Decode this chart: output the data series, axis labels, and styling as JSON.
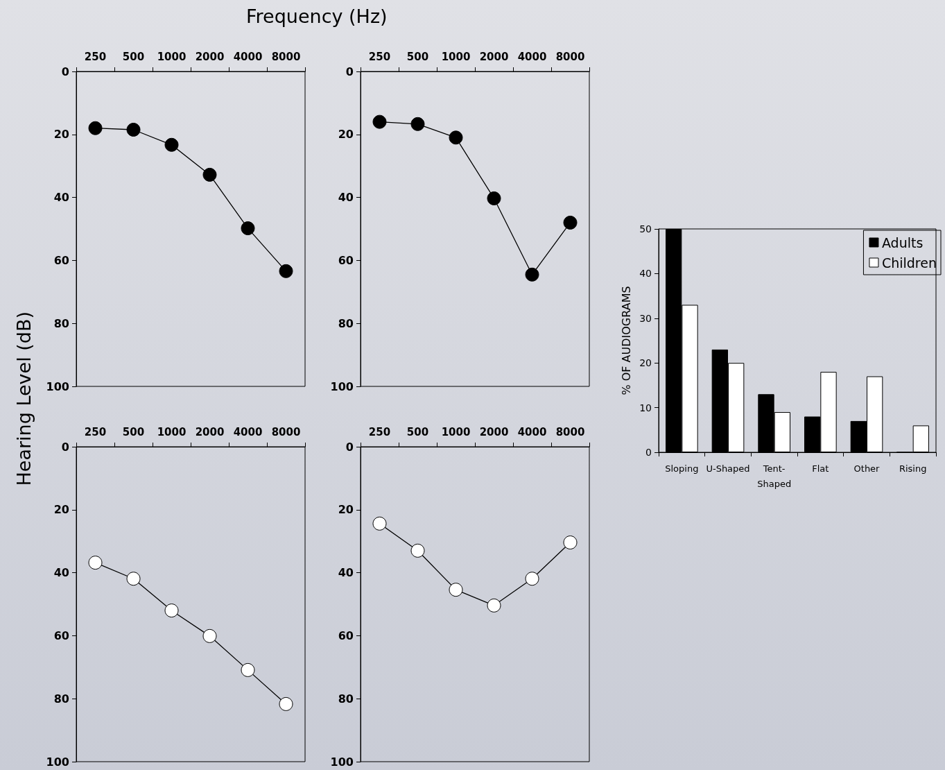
{
  "chart_data": [
    {
      "type": "line",
      "xlabel": "Frequency (Hz)",
      "ylabel": "Hearing Level (dB)",
      "categories": [
        "250",
        "500",
        "1000",
        "2000",
        "4000",
        "8000"
      ],
      "ylim": [
        100,
        0
      ],
      "yticks": [
        0,
        20,
        40,
        60,
        80,
        100
      ],
      "grid": false,
      "legend": false,
      "marker": "circle",
      "line_style": "solid",
      "series": [
        {
          "color": "#000000",
          "values": [
            18,
            18.5,
            23.3,
            32.8,
            49.8,
            63.4
          ]
        }
      ]
    },
    {
      "type": "line",
      "categories": [
        "250",
        "500",
        "1000",
        "2000",
        "4000",
        "8000"
      ],
      "ylim": [
        100,
        0
      ],
      "yticks": [
        0,
        20,
        40,
        60,
        80,
        100
      ],
      "grid": false,
      "legend": false,
      "marker": "circle",
      "line_style": "solid",
      "series": [
        {
          "color": "#000000",
          "values": [
            16,
            16.7,
            21,
            40.3,
            64.5,
            48
          ]
        }
      ]
    },
    {
      "type": "line",
      "categories": [
        "250",
        "500",
        "1000",
        "2000",
        "4000",
        "8000"
      ],
      "ylim": [
        100,
        0
      ],
      "yticks": [
        0,
        20,
        40,
        60,
        80,
        100
      ],
      "grid": false,
      "legend": false,
      "marker": "circle",
      "line_style": "solid",
      "series": [
        {
          "color": "#ffffff",
          "values": [
            36.8,
            41.9,
            52,
            60.1,
            70.9,
            81.7
          ]
        }
      ]
    },
    {
      "type": "line",
      "categories": [
        "250",
        "500",
        "1000",
        "2000",
        "4000",
        "8000"
      ],
      "ylim": [
        100,
        0
      ],
      "yticks": [
        0,
        20,
        40,
        60,
        80,
        100
      ],
      "grid": false,
      "legend": false,
      "marker": "circle",
      "line_style": "solid",
      "series": [
        {
          "color": "#ffffff",
          "values": [
            24.4,
            33,
            45.4,
            50.4,
            41.9,
            30.4
          ]
        }
      ]
    },
    {
      "type": "bar",
      "ylabel": "% OF AUDIOGRAMS",
      "categories": [
        "Sloping",
        "U-Shaped",
        "Tent-Shaped",
        "Flat",
        "Other",
        "Rising"
      ],
      "ylim": [
        0,
        50
      ],
      "yticks": [
        0,
        10,
        20,
        30,
        40,
        50
      ],
      "grid": false,
      "legend": "top right",
      "series": [
        {
          "name": "Adults",
          "color": "#000000",
          "values": [
            50,
            23,
            13,
            8,
            7,
            0
          ]
        },
        {
          "name": "Children",
          "color": "#ffffff",
          "values": [
            33,
            20,
            9,
            18,
            17,
            6
          ]
        }
      ]
    }
  ]
}
